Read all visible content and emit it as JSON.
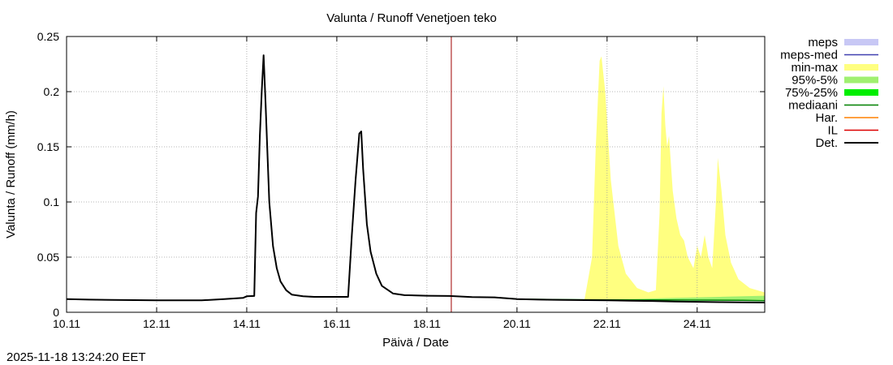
{
  "chart_data": {
    "type": "line",
    "title": "Valunta / Runoff  Venetjoen teko",
    "xlabel": "Päivä / Date",
    "ylabel": "Valunta / Runoff (mm/h)",
    "timestamp": "2025-11-18 13:24:20 EET",
    "xlim": [
      "2025-11-10",
      "2025-11-25 12:00"
    ],
    "ylim": [
      0,
      0.25
    ],
    "grid": true,
    "legend_position": "right",
    "x_ticks": [
      "10.11",
      "12.11",
      "14.11",
      "16.11",
      "18.11",
      "20.11",
      "22.11",
      "24.11"
    ],
    "y_ticks": [
      "0",
      "0.05",
      "0.1",
      "0.15",
      "0.2",
      "0.25"
    ],
    "current_time_marker": "2025-11-18 13:00",
    "legend": [
      {
        "label": "meps",
        "color": "#c8c8f5",
        "style": "band"
      },
      {
        "label": "meps-med",
        "color": "#4040b0",
        "style": "line"
      },
      {
        "label": "min-max",
        "color": "#ffff80",
        "style": "band"
      },
      {
        "label": "95%-5%",
        "color": "#a0f070",
        "style": "band"
      },
      {
        "label": "75%-25%",
        "color": "#00ee00",
        "style": "band"
      },
      {
        "label": "mediaani",
        "color": "#008000",
        "style": "line"
      },
      {
        "label": "Har.",
        "color": "#ff8000",
        "style": "line"
      },
      {
        "label": "IL",
        "color": "#dd0000",
        "style": "line"
      },
      {
        "label": "Det.",
        "color": "#000000",
        "style": "line"
      }
    ],
    "series": [
      {
        "name": "Det.",
        "color": "#000000",
        "points": [
          [
            "2025-11-10 00:00",
            0.012
          ],
          [
            "2025-11-10 12:00",
            0.0115
          ],
          [
            "2025-11-11 00:00",
            0.0112
          ],
          [
            "2025-11-11 12:00",
            0.011
          ],
          [
            "2025-11-12 00:00",
            0.0108
          ],
          [
            "2025-11-12 12:00",
            0.0108
          ],
          [
            "2025-11-13 00:00",
            0.0108
          ],
          [
            "2025-11-13 12:00",
            0.012
          ],
          [
            "2025-11-13 22:00",
            0.013
          ],
          [
            "2025-11-14 00:00",
            0.0145
          ],
          [
            "2025-11-14 04:00",
            0.0148
          ],
          [
            "2025-11-14 05:00",
            0.09
          ],
          [
            "2025-11-14 06:00",
            0.105
          ],
          [
            "2025-11-14 07:00",
            0.16
          ],
          [
            "2025-11-14 08:00",
            0.2
          ],
          [
            "2025-11-14 09:00",
            0.233
          ],
          [
            "2025-11-14 10:00",
            0.19
          ],
          [
            "2025-11-14 12:00",
            0.1
          ],
          [
            "2025-11-14 14:00",
            0.06
          ],
          [
            "2025-11-14 16:00",
            0.04
          ],
          [
            "2025-11-14 18:00",
            0.028
          ],
          [
            "2025-11-14 21:00",
            0.02
          ],
          [
            "2025-11-15 00:00",
            0.016
          ],
          [
            "2025-11-15 06:00",
            0.0145
          ],
          [
            "2025-11-15 12:00",
            0.014
          ],
          [
            "2025-11-16 00:00",
            0.014
          ],
          [
            "2025-11-16 06:00",
            0.014
          ],
          [
            "2025-11-16 08:00",
            0.07
          ],
          [
            "2025-11-16 10:00",
            0.12
          ],
          [
            "2025-11-16 12:00",
            0.162
          ],
          [
            "2025-11-16 13:00",
            0.164
          ],
          [
            "2025-11-16 14:00",
            0.13
          ],
          [
            "2025-11-16 16:00",
            0.08
          ],
          [
            "2025-11-16 18:00",
            0.055
          ],
          [
            "2025-11-16 21:00",
            0.035
          ],
          [
            "2025-11-17 00:00",
            0.024
          ],
          [
            "2025-11-17 06:00",
            0.017
          ],
          [
            "2025-11-17 12:00",
            0.0155
          ],
          [
            "2025-11-18 00:00",
            0.015
          ],
          [
            "2025-11-18 12:00",
            0.0148
          ],
          [
            "2025-11-19 00:00",
            0.0138
          ],
          [
            "2025-11-19 12:00",
            0.0135
          ],
          [
            "2025-11-20 00:00",
            0.012
          ],
          [
            "2025-11-20 12:00",
            0.0115
          ],
          [
            "2025-11-21 00:00",
            0.0112
          ],
          [
            "2025-11-21 12:00",
            0.011
          ],
          [
            "2025-11-22 00:00",
            0.0108
          ],
          [
            "2025-11-22 12:00",
            0.0105
          ],
          [
            "2025-11-23 00:00",
            0.0102
          ],
          [
            "2025-11-23 12:00",
            0.0098
          ],
          [
            "2025-11-24 00:00",
            0.0095
          ],
          [
            "2025-11-24 12:00",
            0.0092
          ],
          [
            "2025-11-25 00:00",
            0.009
          ],
          [
            "2025-11-25 12:00",
            0.0088
          ]
        ]
      },
      {
        "name": "mediaani",
        "color": "#008000",
        "points": [
          [
            "2025-11-19 12:00",
            0.0135
          ],
          [
            "2025-11-20 00:00",
            0.012
          ],
          [
            "2025-11-21 00:00",
            0.0115
          ],
          [
            "2025-11-22 00:00",
            0.0112
          ],
          [
            "2025-11-23 00:00",
            0.0112
          ],
          [
            "2025-11-24 00:00",
            0.011
          ],
          [
            "2025-11-25 00:00",
            0.0108
          ],
          [
            "2025-11-25 12:00",
            0.0105
          ]
        ]
      }
    ],
    "bands": [
      {
        "name": "min-max",
        "color": "#ffff80",
        "points": [
          [
            "2025-11-21 12:00",
            0.011,
            0.012
          ],
          [
            "2025-11-21 16:00",
            0.011,
            0.05
          ],
          [
            "2025-11-21 18:00",
            0.011,
            0.15
          ],
          [
            "2025-11-21 20:00",
            0.011,
            0.228
          ],
          [
            "2025-11-21 21:00",
            0.011,
            0.232
          ],
          [
            "2025-11-21 23:00",
            0.011,
            0.2
          ],
          [
            "2025-11-22 02:00",
            0.011,
            0.12
          ],
          [
            "2025-11-22 06:00",
            0.011,
            0.06
          ],
          [
            "2025-11-22 10:00",
            0.011,
            0.035
          ],
          [
            "2025-11-22 16:00",
            0.011,
            0.022
          ],
          [
            "2025-11-22 22:00",
            0.011,
            0.018
          ],
          [
            "2025-11-23 02:00",
            0.011,
            0.02
          ],
          [
            "2025-11-23 04:00",
            0.011,
            0.09
          ],
          [
            "2025-11-23 05:00",
            0.011,
            0.18
          ],
          [
            "2025-11-23 06:00",
            0.011,
            0.205
          ],
          [
            "2025-11-23 07:00",
            0.011,
            0.17
          ],
          [
            "2025-11-23 08:00",
            0.011,
            0.15
          ],
          [
            "2025-11-23 09:00",
            0.011,
            0.16
          ],
          [
            "2025-11-23 11:00",
            0.011,
            0.11
          ],
          [
            "2025-11-23 13:00",
            0.011,
            0.085
          ],
          [
            "2025-11-23 15:00",
            0.011,
            0.07
          ],
          [
            "2025-11-23 17:00",
            0.011,
            0.065
          ],
          [
            "2025-11-23 19:00",
            0.011,
            0.05
          ],
          [
            "2025-11-23 22:00",
            0.011,
            0.04
          ],
          [
            "2025-11-24 00:00",
            0.011,
            0.06
          ],
          [
            "2025-11-24 02:00",
            0.011,
            0.05
          ],
          [
            "2025-11-24 04:00",
            0.011,
            0.07
          ],
          [
            "2025-11-24 06:00",
            0.011,
            0.05
          ],
          [
            "2025-11-24 08:00",
            0.011,
            0.04
          ],
          [
            "2025-11-24 10:00",
            0.011,
            0.1
          ],
          [
            "2025-11-24 11:00",
            0.011,
            0.14
          ],
          [
            "2025-11-24 13:00",
            0.011,
            0.11
          ],
          [
            "2025-11-24 15:00",
            0.011,
            0.07
          ],
          [
            "2025-11-24 18:00",
            0.011,
            0.045
          ],
          [
            "2025-11-24 22:00",
            0.011,
            0.03
          ],
          [
            "2025-11-25 04:00",
            0.011,
            0.022
          ],
          [
            "2025-11-25 12:00",
            0.011,
            0.018
          ]
        ]
      },
      {
        "name": "95%-5%",
        "color": "#a0f070",
        "points": [
          [
            "2025-11-21 12:00",
            0.011,
            0.0118
          ],
          [
            "2025-11-22 12:00",
            0.011,
            0.012
          ],
          [
            "2025-11-23 12:00",
            0.0108,
            0.013
          ],
          [
            "2025-11-24 12:00",
            0.0105,
            0.014
          ],
          [
            "2025-11-25 12:00",
            0.0105,
            0.015
          ]
        ]
      }
    ]
  }
}
